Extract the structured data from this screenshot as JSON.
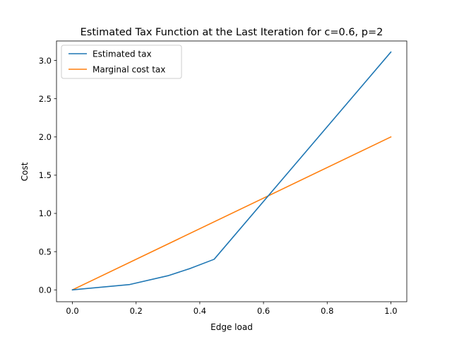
{
  "chart_data": {
    "type": "line",
    "title": "Estimated Tax Function at the Last Iteration for c=0.6, p=2",
    "xlabel": "Edge load",
    "ylabel": "Cost",
    "xlim": [
      -0.05,
      1.05
    ],
    "ylim": [
      -0.155,
      3.255
    ],
    "xticks": [
      0.0,
      0.2,
      0.4,
      0.6,
      0.8,
      1.0
    ],
    "xtick_labels": [
      "0.0",
      "0.2",
      "0.4",
      "0.6",
      "0.8",
      "1.0"
    ],
    "yticks": [
      0.0,
      0.5,
      1.0,
      1.5,
      2.0,
      2.5,
      3.0
    ],
    "ytick_labels": [
      "0.0",
      "0.5",
      "1.0",
      "1.5",
      "2.0",
      "2.5",
      "3.0"
    ],
    "grid": false,
    "legend_position": "top-left",
    "series": [
      {
        "name": "Estimated tax",
        "color": "#1f77b4",
        "x": [
          0.0,
          0.18,
          0.3,
          0.37,
          0.445,
          1.0
        ],
        "y": [
          0.0,
          0.07,
          0.185,
          0.28,
          0.4,
          3.11
        ]
      },
      {
        "name": "Marginal cost tax",
        "color": "#ff7f0e",
        "x": [
          0.0,
          1.0
        ],
        "y": [
          0.0,
          2.0
        ]
      }
    ]
  }
}
